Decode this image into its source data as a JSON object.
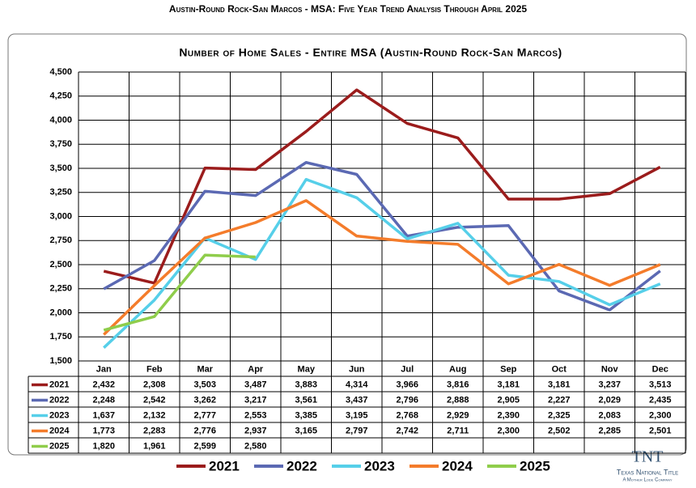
{
  "page": {
    "title": "Austin-Round Rock-San Marcos - MSA: Five Year Trend Analysis Through April 2025"
  },
  "logo": {
    "mark": "TNT",
    "name": "Texas National Title",
    "tagline": "A Mother Lode Company"
  },
  "chart_data": {
    "type": "line",
    "title": "Number of Home Sales - Entire MSA (Austin-Round Rock-San Marcos)",
    "categories": [
      "Jan",
      "Feb",
      "Mar",
      "Apr",
      "May",
      "Jun",
      "Jul",
      "Aug",
      "Sep",
      "Oct",
      "Nov",
      "Dec"
    ],
    "ylim": [
      1500,
      4500
    ],
    "yticks": [
      {
        "value": 1500,
        "label": "1,500"
      },
      {
        "value": 1750,
        "label": "1,750"
      },
      {
        "value": 2000,
        "label": "2,000"
      },
      {
        "value": 2250,
        "label": "2,250"
      },
      {
        "value": 2500,
        "label": "2,500"
      },
      {
        "value": 2750,
        "label": "2,750"
      },
      {
        "value": 3000,
        "label": "3,000"
      },
      {
        "value": 3250,
        "label": "3,250"
      },
      {
        "value": 3500,
        "label": "3,500"
      },
      {
        "value": 3750,
        "label": "3,750"
      },
      {
        "value": 4000,
        "label": "4,000"
      },
      {
        "value": 4250,
        "label": "4,250"
      },
      {
        "value": 4500,
        "label": "4,500"
      }
    ],
    "grid": true,
    "legend": "bottom",
    "series": [
      {
        "name": "2021",
        "color": "#9b1c1c",
        "values": [
          2432,
          2308,
          3503,
          3487,
          3883,
          4314,
          3966,
          3816,
          3181,
          3181,
          3237,
          3513
        ],
        "value_labels": [
          "2,432",
          "2,308",
          "3,503",
          "3,487",
          "3,883",
          "4,314",
          "3,966",
          "3,816",
          "3,181",
          "3,181",
          "3,237",
          "3,513"
        ]
      },
      {
        "name": "2022",
        "color": "#5b69b3",
        "values": [
          2248,
          2542,
          3262,
          3217,
          3561,
          3437,
          2796,
          2888,
          2905,
          2227,
          2029,
          2435
        ],
        "value_labels": [
          "2,248",
          "2,542",
          "3,262",
          "3,217",
          "3,561",
          "3,437",
          "2,796",
          "2,888",
          "2,905",
          "2,227",
          "2,029",
          "2,435"
        ]
      },
      {
        "name": "2023",
        "color": "#56cfe9",
        "values": [
          1637,
          2132,
          2777,
          2553,
          3385,
          3195,
          2768,
          2929,
          2390,
          2325,
          2083,
          2300
        ],
        "value_labels": [
          "1,637",
          "2,132",
          "2,777",
          "2,553",
          "3,385",
          "3,195",
          "2,768",
          "2,929",
          "2,390",
          "2,325",
          "2,083",
          "2,300"
        ]
      },
      {
        "name": "2024",
        "color": "#f47c2b",
        "values": [
          1773,
          2283,
          2776,
          2937,
          3165,
          2797,
          2742,
          2711,
          2300,
          2502,
          2285,
          2501
        ],
        "value_labels": [
          "1,773",
          "2,283",
          "2,776",
          "2,937",
          "3,165",
          "2,797",
          "2,742",
          "2,711",
          "2,300",
          "2,502",
          "2,285",
          "2,501"
        ]
      },
      {
        "name": "2025",
        "color": "#8fcd4b",
        "values": [
          1820,
          1961,
          2599,
          2580,
          null,
          null,
          null,
          null,
          null,
          null,
          null,
          null
        ],
        "value_labels": [
          "1,820",
          "1,961",
          "2,599",
          "2,580",
          null,
          null,
          null,
          null,
          null,
          null,
          null,
          null
        ]
      }
    ]
  }
}
